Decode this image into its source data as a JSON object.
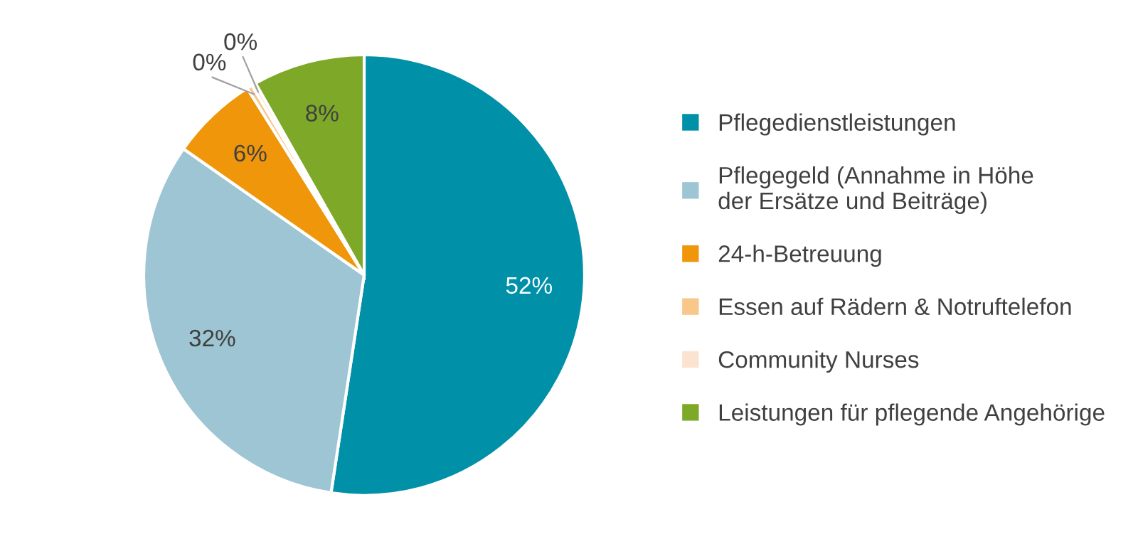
{
  "chart_data": {
    "type": "pie",
    "categories": [
      "Pflegedienstleistungen",
      "Pflegegeld (Annahme in Höhe\nder Ersätze und Beiträge)",
      "24-h-Betreuung",
      "Essen auf Rädern & Notruftelefon",
      "Community Nurses",
      "Leistungen für pflegende Angehörige"
    ],
    "values": [
      52.4,
      32.3,
      6.4,
      0.4,
      0.3,
      8.2
    ],
    "value_labels": [
      "52%",
      "32%",
      "6%",
      "0%",
      "0%",
      "8%"
    ],
    "colors": [
      "#0090a8",
      "#9dc5d3",
      "#f0960a",
      "#f8c78a",
      "#fce3cf",
      "#7ea928"
    ],
    "legend": "right"
  }
}
